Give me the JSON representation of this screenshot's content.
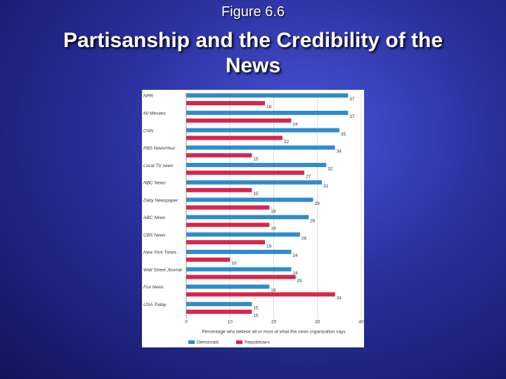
{
  "chart_data": {
    "type": "bar",
    "orientation": "horizontal",
    "figure_label": "Figure 6.6",
    "title": "Partisanship and the Credibility of the News",
    "categories": [
      "NPR",
      "60 Minutes",
      "CNN",
      "PBS NewsHour",
      "Local TV news",
      "NBC News",
      "Daily Newspaper",
      "ABC News",
      "CBS News",
      "New York Times",
      "Wall Street Journal",
      "Fox News",
      "USA Today"
    ],
    "series": [
      {
        "name": "Democrats",
        "color": "#2f8bcc",
        "values": [
          37,
          37,
          35,
          34,
          32,
          31,
          29,
          28,
          26,
          24,
          24,
          19,
          15
        ]
      },
      {
        "name": "Republicans",
        "color": "#d7264c",
        "values": [
          18,
          24,
          22,
          15,
          27,
          15,
          19,
          19,
          18,
          10,
          25,
          34,
          15
        ]
      }
    ],
    "xlim": [
      0,
      40
    ],
    "xticks": [
      0,
      10,
      20,
      30,
      40
    ],
    "xlabel": "Percentage who believe all or most of what the news organization says",
    "grid": true,
    "legend": "bottom"
  }
}
